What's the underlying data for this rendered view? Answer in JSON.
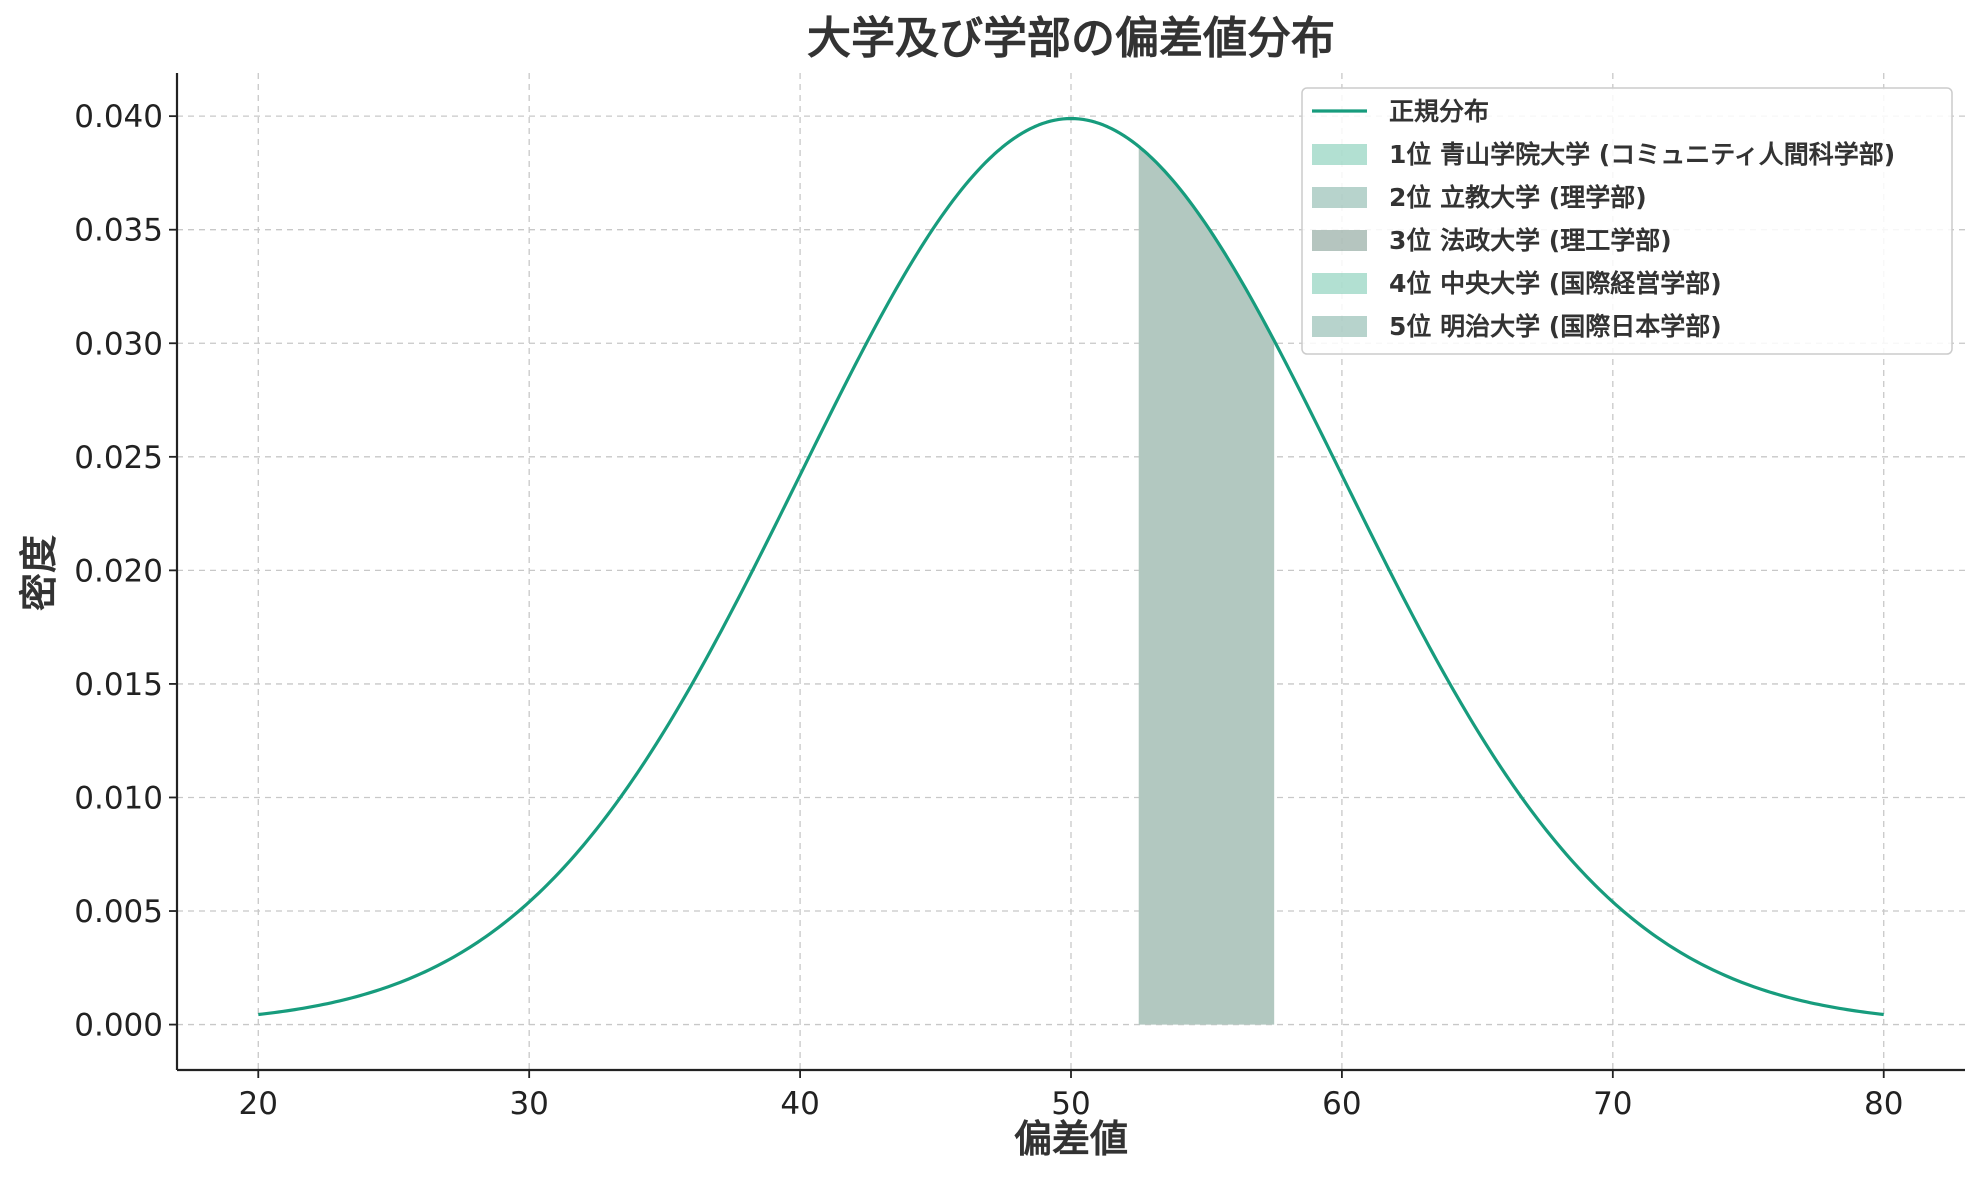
{
  "chart_data": {
    "type": "area",
    "title": "大学及び学部の偏差値分布",
    "xlabel": "偏差値",
    "ylabel": "密度",
    "xlim": [
      17,
      83
    ],
    "ylim": [
      -0.002,
      0.0419
    ],
    "x_ticks": [
      "20",
      "30",
      "40",
      "50",
      "60",
      "70",
      "80"
    ],
    "x_tick_values": [
      20,
      30,
      40,
      50,
      60,
      70,
      80
    ],
    "y_ticks": [
      "0.000",
      "0.005",
      "0.010",
      "0.015",
      "0.020",
      "0.025",
      "0.030",
      "0.035",
      "0.040"
    ],
    "y_tick_values": [
      0,
      0.005,
      0.01,
      0.015,
      0.02,
      0.025,
      0.03,
      0.035,
      0.04
    ],
    "grid": true,
    "legend_position": "top-right",
    "curve": {
      "name": "正規分布",
      "mean": 50,
      "sd": 10,
      "x_range": [
        20,
        80
      ],
      "color": "#179c7d"
    },
    "bands": [
      {
        "name": "1位 青山学院大学 (コミュニティ人間科学部)",
        "x_range": [
          52.5,
          57.5
        ],
        "color": "#66c2a5",
        "opacity": 0.5
      },
      {
        "name": "2位 立教大学 (理学部)",
        "x_range": [
          52.5,
          57.5
        ],
        "color": "#5f9e8f",
        "opacity": 0.45
      },
      {
        "name": "3位 法政大学 (理工学部)",
        "x_range": [
          52.5,
          57.5
        ],
        "color": "#5a7f72",
        "opacity": 0.45
      },
      {
        "name": "4位 中央大学 (国際経営学部)",
        "x_range": [
          52.5,
          57.5
        ],
        "color": "#66c2a5",
        "opacity": 0.5
      },
      {
        "name": "5位 明治大学 (国際日本学部)",
        "x_range": [
          52.5,
          57.5
        ],
        "color": "#5f9e8f",
        "opacity": 0.45
      }
    ],
    "band_combined_color": "#b2c8c0"
  }
}
